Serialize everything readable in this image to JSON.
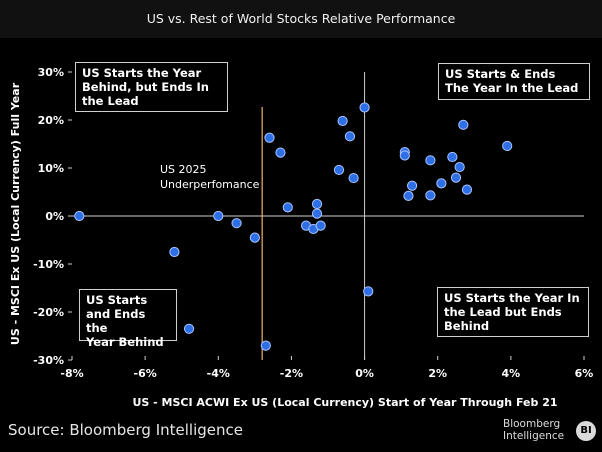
{
  "chart_data": {
    "type": "scatter",
    "title": "US vs. Rest of World Stocks Relative Performance",
    "xlabel": "US - MSCI ACWI Ex US (Local Currency) Start of Year Through Feb 21",
    "ylabel": "US - MSCI Ex US (Local Currency) Full Year",
    "xlim": [
      -8,
      6
    ],
    "ylim": [
      -30,
      30
    ],
    "x_ticks": [
      "-8%",
      "-6%",
      "-4%",
      "-2%",
      "0%",
      "2%",
      "4%",
      "6%"
    ],
    "x_tick_values": [
      -8,
      -6,
      -4,
      -2,
      0,
      2,
      4,
      6
    ],
    "y_ticks": [
      "30%",
      "20%",
      "10%",
      "0%",
      "-10%",
      "-20%",
      "-30%"
    ],
    "y_tick_values": [
      30,
      20,
      10,
      0,
      -10,
      -20,
      -30
    ],
    "reference_line": {
      "x": -2.8,
      "label_line1": "US 2025",
      "label_line2": "Underperfomance"
    },
    "points": [
      {
        "x": -7.8,
        "y": 0.0
      },
      {
        "x": -5.2,
        "y": -7.5
      },
      {
        "x": -4.8,
        "y": -23.5
      },
      {
        "x": -4.0,
        "y": 0.0
      },
      {
        "x": -3.5,
        "y": -1.5
      },
      {
        "x": -3.0,
        "y": -4.5
      },
      {
        "x": -2.7,
        "y": -27.0
      },
      {
        "x": -2.6,
        "y": 16.3
      },
      {
        "x": -2.3,
        "y": 13.2
      },
      {
        "x": -2.1,
        "y": 1.8
      },
      {
        "x": -1.6,
        "y": -2.0
      },
      {
        "x": -1.4,
        "y": -2.7
      },
      {
        "x": -1.3,
        "y": 2.5
      },
      {
        "x": -1.3,
        "y": 0.5
      },
      {
        "x": -1.2,
        "y": -2.0
      },
      {
        "x": -0.7,
        "y": 9.6
      },
      {
        "x": -0.6,
        "y": 19.8
      },
      {
        "x": -0.4,
        "y": 16.6
      },
      {
        "x": -0.3,
        "y": 7.9
      },
      {
        "x": 0.0,
        "y": 22.6
      },
      {
        "x": 0.1,
        "y": -15.7
      },
      {
        "x": 1.1,
        "y": 13.3
      },
      {
        "x": 1.1,
        "y": 12.6
      },
      {
        "x": 1.2,
        "y": 4.2
      },
      {
        "x": 1.3,
        "y": 6.3
      },
      {
        "x": 1.8,
        "y": 11.6
      },
      {
        "x": 1.8,
        "y": 4.3
      },
      {
        "x": 2.1,
        "y": 6.8
      },
      {
        "x": 2.4,
        "y": 12.3
      },
      {
        "x": 2.5,
        "y": 8.0
      },
      {
        "x": 2.6,
        "y": 10.2
      },
      {
        "x": 2.7,
        "y": 19.0
      },
      {
        "x": 2.8,
        "y": 5.5
      },
      {
        "x": 3.9,
        "y": 14.6
      }
    ]
  },
  "quadrants": {
    "top_left": [
      "US Starts the Year",
      "Behind, but Ends In",
      "the Lead"
    ],
    "top_right": [
      "US Starts & Ends",
      "The Year In the Lead"
    ],
    "bottom_left": [
      "US Starts",
      "and Ends the",
      "Year Behind"
    ],
    "bottom_right": [
      "US Starts the Year In",
      "the Lead but Ends",
      "Behind"
    ]
  },
  "footer": {
    "source": "Source: Bloomberg Intelligence",
    "logo_line1": "Bloomberg",
    "logo_line2": "Intelligence",
    "logo_badge": "BI"
  },
  "colors": {
    "point_fill": "#2f6fe6",
    "point_stroke": "#a9c4ff",
    "axis": "#cfcfcf",
    "reference_line": "#f4b06a"
  }
}
